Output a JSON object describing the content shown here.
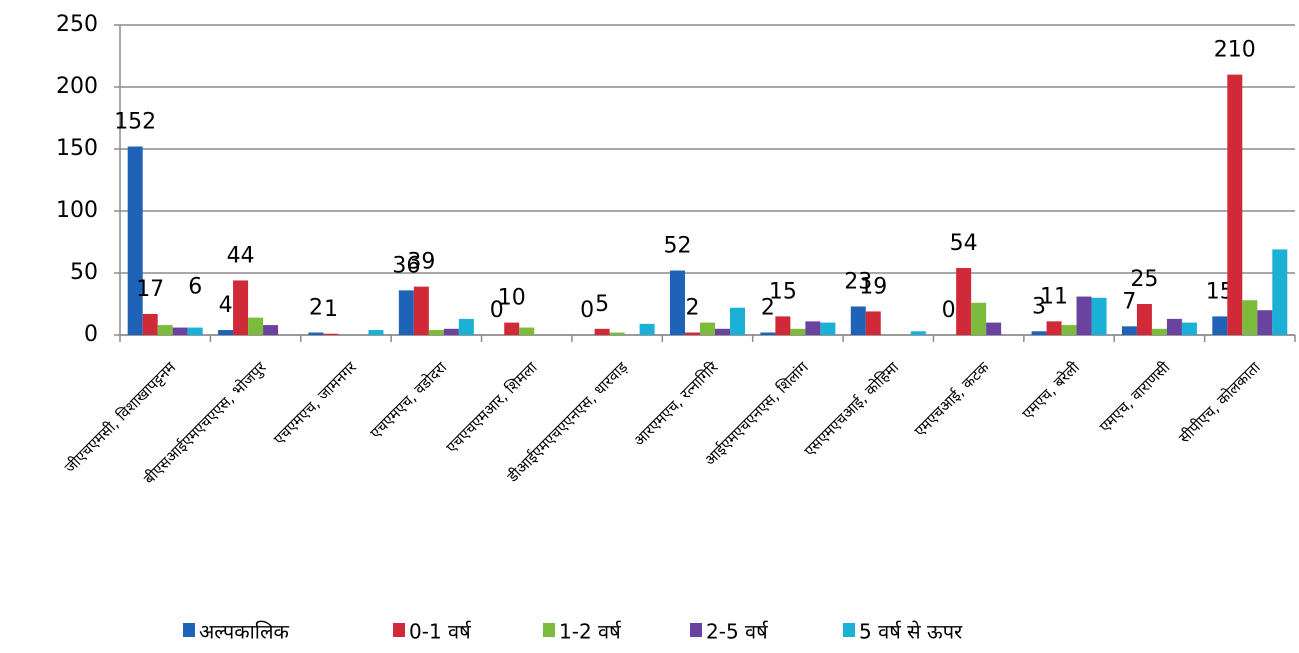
{
  "chart_data": {
    "type": "bar",
    "categories": [
      "जीएचएमसी, विशाखापट्टनम",
      "बीएसआईएमएचएएस, भोजपुर",
      "एचएमएच, जामनगर",
      "एचएमएच, वडोदरा",
      "एचएचएमआर, शिमला",
      "डीआईएमएचएएनएस, धारवाड़",
      "आरएमएच, रत्नागिरि",
      "आईएमएचएनएस, शिलांग",
      "एसएमएचआई, कोहिमा",
      "एमएचआई, कटक",
      "एमएच, बरेली",
      "एमएच, वाराणसी",
      "सीपीएच, कोलकाता"
    ],
    "series": [
      {
        "name": "अल्पकालिक",
        "color": "#1f63b8",
        "values": [
          152,
          4,
          2,
          36,
          0,
          0,
          52,
          2,
          23,
          0,
          3,
          7,
          15
        ],
        "data_labels": true
      },
      {
        "name": "0-1 वर्ष",
        "color": "#d02a38",
        "values": [
          17,
          44,
          1,
          39,
          10,
          5,
          2,
          15,
          19,
          54,
          11,
          25,
          210
        ],
        "data_labels": true
      },
      {
        "name": "1-2 वर्ष",
        "color": "#7dbb3c",
        "values": [
          8,
          14,
          0,
          4,
          6,
          2,
          10,
          5,
          0,
          26,
          8,
          5,
          28
        ]
      },
      {
        "name": "2-5 वर्ष",
        "color": "#6a43a0",
        "values": [
          6,
          8,
          0,
          5,
          0,
          0,
          5,
          11,
          0,
          10,
          31,
          13,
          20
        ]
      },
      {
        "name": "5 वर्ष से ऊपर",
        "color": "#1bb0d6",
        "values": [
          6,
          0,
          4,
          13,
          0,
          9,
          22,
          10,
          3,
          0,
          30,
          10,
          69
        ],
        "value_labels": [
          "6",
          null,
          null,
          null,
          null,
          null,
          null,
          null,
          null,
          null,
          null,
          null,
          null
        ]
      }
    ],
    "ylim": [
      0,
      250
    ],
    "yticks": [
      0,
      50,
      100,
      150,
      200,
      250
    ],
    "grid": true,
    "legend": "bottom"
  }
}
